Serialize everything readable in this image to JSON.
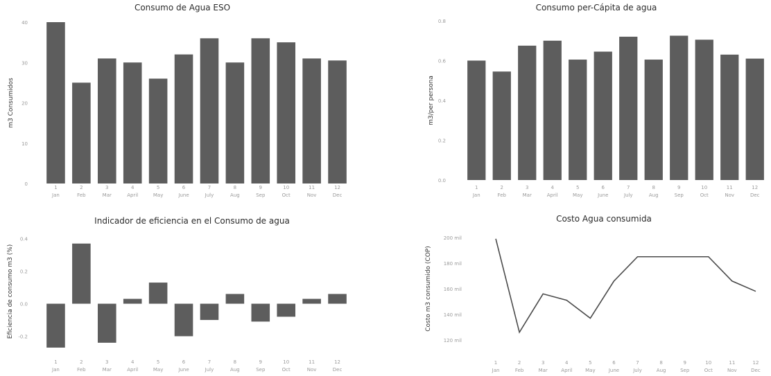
{
  "chart_data": [
    {
      "type": "bar",
      "title": "Consumo de Agua ESO",
      "ylabel": "m3 Consumidos",
      "xlabel": "",
      "categories": [
        "Jan",
        "Feb",
        "Mar",
        "April",
        "May",
        "June",
        "July",
        "Aug",
        "Sep",
        "Oct",
        "Nov",
        "Dec"
      ],
      "numbers": [
        "1",
        "2",
        "3",
        "4",
        "5",
        "6",
        "7",
        "8",
        "9",
        "10",
        "11",
        "12"
      ],
      "values": [
        40,
        25,
        31,
        30,
        26,
        32,
        36,
        30,
        36,
        35,
        31,
        30.5
      ],
      "ylim": [
        0,
        40
      ],
      "yticks": [
        0,
        10,
        20,
        30,
        40
      ],
      "ytick_labels": [
        "0",
        "10",
        "20",
        "30",
        "40"
      ],
      "grid": false
    },
    {
      "type": "bar",
      "title": "Consumo per-Cápita de agua",
      "ylabel": "m3/per persona",
      "xlabel": "",
      "categories": [
        "Jan",
        "Feb",
        "Mar",
        "April",
        "May",
        "June",
        "July",
        "Aug",
        "Sep",
        "Oct",
        "Nov",
        "Dec"
      ],
      "numbers": [
        "1",
        "2",
        "3",
        "4",
        "5",
        "6",
        "7",
        "8",
        "9",
        "10",
        "11",
        "12"
      ],
      "values": [
        0.6,
        0.545,
        0.675,
        0.7,
        0.605,
        0.645,
        0.72,
        0.605,
        0.725,
        0.705,
        0.63,
        0.61
      ],
      "ylim": [
        0,
        0.8
      ],
      "yticks": [
        0,
        0.2,
        0.4,
        0.6,
        0.8
      ],
      "ytick_labels": [
        "0.0",
        "0.2",
        "0.4",
        "0.6",
        "0.8"
      ],
      "grid": false
    },
    {
      "type": "bar",
      "title": "Indicador de eficiencia en el Consumo de agua",
      "ylabel": "Eficiencia de consumo m3 (%)",
      "xlabel": "",
      "categories": [
        "Jan",
        "Feb",
        "Mar",
        "April",
        "May",
        "June",
        "July",
        "Aug",
        "Sep",
        "Oct",
        "Nov",
        "Dec"
      ],
      "numbers": [
        "1",
        "2",
        "3",
        "4",
        "5",
        "6",
        "7",
        "8",
        "9",
        "10",
        "11",
        "12"
      ],
      "values": [
        -0.27,
        0.37,
        -0.24,
        0.03,
        0.13,
        -0.2,
        -0.1,
        0.06,
        -0.11,
        -0.08,
        0.03,
        0.06
      ],
      "ylim": [
        -0.27,
        0.42
      ],
      "yticks": [
        -0.2,
        0,
        0.2,
        0.4
      ],
      "ytick_labels": [
        "-0.2",
        "0.0",
        "0.2",
        "0.4"
      ],
      "grid": false
    },
    {
      "type": "line",
      "title": "Costo Agua consumida",
      "ylabel": "Costo m3 consumido (COP)",
      "xlabel": "",
      "categories": [
        "Jan",
        "Feb",
        "Mar",
        "April",
        "May",
        "June",
        "July",
        "Aug",
        "Sep",
        "Oct",
        "Nov",
        "Dec"
      ],
      "numbers": [
        "1",
        "2",
        "3",
        "4",
        "5",
        "6",
        "7",
        "8",
        "9",
        "10",
        "11",
        "12"
      ],
      "values": [
        199000,
        126000,
        156000,
        151000,
        137000,
        166000,
        185000,
        185000,
        185000,
        185000,
        166000,
        158000
      ],
      "ylim": [
        120000,
        200000
      ],
      "yticks": [
        120000,
        140000,
        160000,
        180000,
        200000
      ],
      "ytick_labels": [
        "120 mil",
        "140 mil",
        "160 mil",
        "180 mil",
        "200 mil"
      ],
      "grid": false
    }
  ]
}
